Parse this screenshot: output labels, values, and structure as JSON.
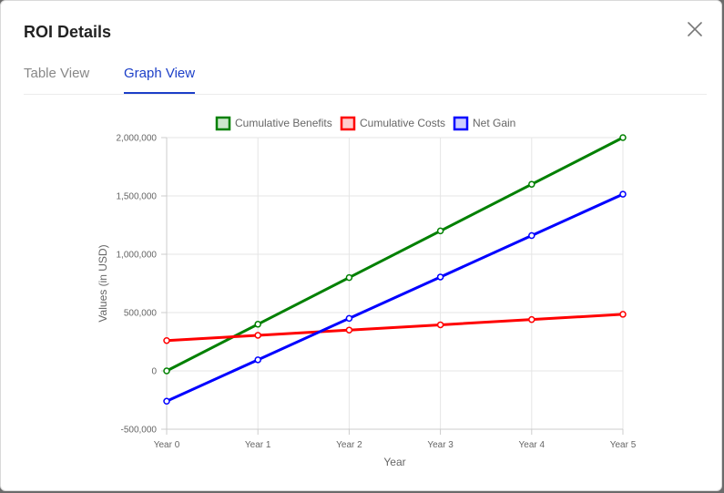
{
  "modal": {
    "title": "ROI Details",
    "close_icon": "close-icon"
  },
  "tabs": [
    {
      "label": "Table View",
      "active": false
    },
    {
      "label": "Graph View",
      "active": true
    }
  ],
  "colors": {
    "active_tab": "#1c3fc8",
    "benefits": "#008000",
    "costs": "#ff0000",
    "net": "#0000ff"
  },
  "chart_data": {
    "type": "line",
    "x": [
      "Year 0",
      "Year 1",
      "Year 2",
      "Year 3",
      "Year 4",
      "Year 5"
    ],
    "xlabel": "Year",
    "ylabel": "Values (in USD)",
    "ylim": [
      -500000,
      2000000
    ],
    "yticks": [
      "2,000,000",
      "1,500,000",
      "1,000,000",
      "500,000",
      "0",
      "-500,000"
    ],
    "grid": true,
    "legend_position": "top",
    "series": [
      {
        "name": "Cumulative Benefits",
        "color": "#008000",
        "values": [
          0,
          400000,
          800000,
          1200000,
          1600000,
          2000000
        ]
      },
      {
        "name": "Cumulative Costs",
        "color": "#ff0000",
        "values": [
          260000,
          305000,
          350000,
          395000,
          440000,
          485000
        ]
      },
      {
        "name": "Net Gain",
        "color": "#0000ff",
        "values": [
          -260000,
          95000,
          450000,
          805000,
          1160000,
          1515000
        ]
      }
    ]
  }
}
